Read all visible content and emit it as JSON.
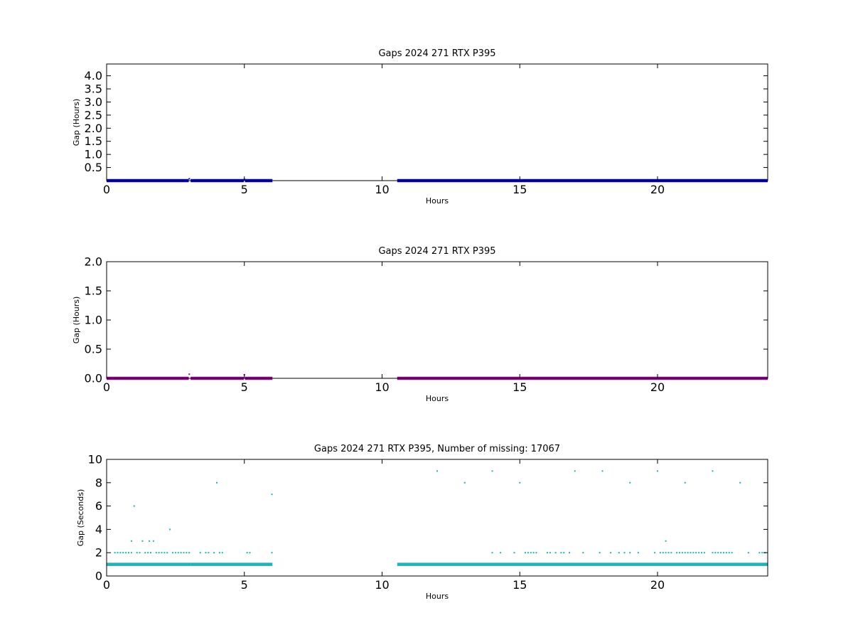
{
  "chart_data": [
    {
      "type": "scatter",
      "title": "Gaps 2024 271 RTX  P395",
      "xlabel": "Hours",
      "ylabel": "Gap (Hours)",
      "xlim": [
        0,
        24
      ],
      "ylim": [
        0,
        4.45
      ],
      "xticks": [
        0,
        5,
        10,
        15,
        20
      ],
      "yticks": [
        0.5,
        1.0,
        1.5,
        2.0,
        2.5,
        3.0,
        3.5,
        4.0
      ],
      "ytick_labels": [
        "0.5",
        "1.0",
        "1.5",
        "2.0",
        "2.5",
        "3.0",
        "3.5",
        "4.0"
      ],
      "color": "#0000cc",
      "grid": false,
      "dense_segments": [
        {
          "x_start": 0.0,
          "x_end": 2.98,
          "y": 0.0003
        },
        {
          "x_start": 3.05,
          "x_end": 4.98,
          "y": 0.0003
        },
        {
          "x_start": 5.02,
          "x_end": 6.02,
          "y": 0.0003
        },
        {
          "x_start": 10.55,
          "x_end": 24.0,
          "y": 0.0003
        }
      ],
      "series": [
        {
          "x": [
            3.0,
            5.0
          ],
          "y": [
            0.07,
            0.05
          ]
        }
      ]
    },
    {
      "type": "scatter",
      "title": "Gaps 2024 271 RTX  P395",
      "xlabel": "Hours",
      "ylabel": "Gap (Hours)",
      "xlim": [
        0,
        24
      ],
      "ylim": [
        0,
        2.0
      ],
      "xticks": [
        0,
        5,
        10,
        15,
        20
      ],
      "yticks": [
        0.0,
        0.5,
        1.0,
        1.5,
        2.0
      ],
      "ytick_labels": [
        "0.0",
        "0.5",
        "1.0",
        "1.5",
        "2.0"
      ],
      "color": "#990099",
      "grid": false,
      "dense_segments": [
        {
          "x_start": 0.0,
          "x_end": 2.98,
          "y": 0.0003
        },
        {
          "x_start": 3.05,
          "x_end": 4.98,
          "y": 0.0003
        },
        {
          "x_start": 5.02,
          "x_end": 6.02,
          "y": 0.0003
        },
        {
          "x_start": 10.55,
          "x_end": 24.0,
          "y": 0.0003
        }
      ],
      "series": [
        {
          "x": [
            3.0,
            5.0
          ],
          "y": [
            0.07,
            0.06
          ]
        }
      ]
    },
    {
      "type": "scatter",
      "title": "Gaps 2024 271 RTX  P395, Number of missing: 17067",
      "xlabel": "Hours",
      "ylabel": "Gap (Seconds)",
      "xlim": [
        0,
        24
      ],
      "ylim": [
        0,
        10
      ],
      "xticks": [
        0,
        5,
        10,
        15,
        20
      ],
      "yticks": [
        0,
        2,
        4,
        6,
        8,
        10
      ],
      "ytick_labels": [
        "0",
        "2",
        "4",
        "6",
        "8",
        "10"
      ],
      "color": "#1ab5b5",
      "grid": false,
      "dense_segments": [
        {
          "x_start": 0.0,
          "x_end": 3.05,
          "y": 1
        },
        {
          "x_start": 3.05,
          "x_end": 6.02,
          "y": 1
        },
        {
          "x_start": 10.55,
          "x_end": 24.0,
          "y": 1
        }
      ],
      "series": [
        {
          "x": [
            0.3,
            0.4,
            0.5,
            0.6,
            0.7,
            0.8,
            0.9,
            1.1,
            1.2,
            1.4,
            1.5,
            1.6,
            1.8,
            1.9,
            2.0,
            2.1,
            2.2,
            2.4,
            2.5,
            2.6,
            2.7,
            2.8,
            2.9,
            3.0,
            3.4,
            3.6,
            3.7,
            3.9,
            4.1,
            4.2,
            5.1,
            5.2,
            6.0,
            14.0,
            14.3,
            14.8,
            15.2,
            15.3,
            15.4,
            15.5,
            15.6,
            16.0,
            16.1,
            16.3,
            16.5,
            16.6,
            16.8,
            17.3,
            17.9,
            18.3,
            18.6,
            18.8,
            19.0,
            19.3,
            19.9,
            20.1,
            20.2,
            20.3,
            20.4,
            20.5,
            20.7,
            20.8,
            20.9,
            21.0,
            21.1,
            21.2,
            21.3,
            21.4,
            21.5,
            21.6,
            21.7,
            22.0,
            22.1,
            22.2,
            22.3,
            22.4,
            22.5,
            22.6,
            22.7,
            23.3,
            23.7,
            23.8,
            23.9,
            0.9,
            1.3,
            1.55,
            1.7,
            2.3,
            20.3,
            1.0,
            4.0,
            6.0,
            12.0,
            13.0,
            14.0,
            15.0,
            17.0,
            18.0,
            19.0,
            20.0,
            21.0,
            22.0,
            23.0
          ],
          "y": [
            2,
            2,
            2,
            2,
            2,
            2,
            2,
            2,
            2,
            2,
            2,
            2,
            2,
            2,
            2,
            2,
            2,
            2,
            2,
            2,
            2,
            2,
            2,
            2,
            2,
            2,
            2,
            2,
            2,
            2,
            2,
            2,
            2,
            2,
            2,
            2,
            2,
            2,
            2,
            2,
            2,
            2,
            2,
            2,
            2,
            2,
            2,
            2,
            2,
            2,
            2,
            2,
            2,
            2,
            2,
            2,
            2,
            2,
            2,
            2,
            2,
            2,
            2,
            2,
            2,
            2,
            2,
            2,
            2,
            2,
            2,
            2,
            2,
            2,
            2,
            2,
            2,
            2,
            2,
            2,
            2,
            2,
            2,
            3,
            3,
            3,
            3,
            4,
            3,
            6,
            8,
            7,
            9,
            8,
            9,
            8,
            9,
            9,
            8,
            9,
            8,
            9,
            8
          ]
        }
      ]
    }
  ]
}
